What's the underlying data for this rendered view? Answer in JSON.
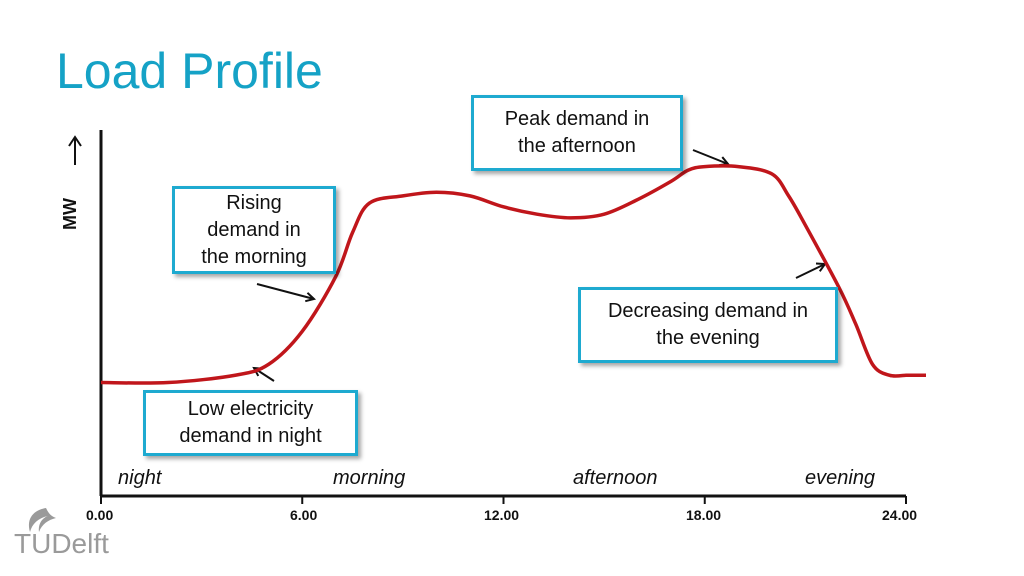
{
  "title": "Load Profile",
  "y_axis_label": "MW",
  "x_ticks": [
    "0.00",
    "6.00",
    "12.00",
    "18.00",
    "24.00"
  ],
  "periods": [
    "night",
    "morning",
    "afternoon",
    "evening"
  ],
  "callouts": {
    "night": "Low electricity\ndemand in night",
    "morning": "Rising\ndemand in\nthe morning",
    "afternoon": "Peak demand in\nthe afternoon",
    "evening": "Decreasing demand in\nthe evening"
  },
  "logo": {
    "text": "TUDelft"
  },
  "colors": {
    "title": "#15a2c6",
    "curve": "#c0161b",
    "callout_border": "#1eaad0",
    "axis": "#111111",
    "logo": "#9a9a9a"
  },
  "chart_data": {
    "type": "line",
    "title": "",
    "xlabel": "",
    "ylabel": "MW",
    "xlim": [
      0,
      24
    ],
    "ylim": [
      0,
      1
    ],
    "x_tick_values": [
      0,
      6,
      12,
      18,
      24
    ],
    "series": [
      {
        "x": [
          0,
          2,
          4,
          5,
          6,
          7,
          7.5,
          8,
          9,
          10,
          11,
          12,
          13,
          14,
          15,
          16,
          17,
          17.5,
          18,
          19,
          20,
          20.5,
          21,
          22,
          22.5,
          23,
          23.5,
          24
        ],
        "values": [
          0.31,
          0.31,
          0.33,
          0.36,
          0.45,
          0.6,
          0.72,
          0.8,
          0.82,
          0.83,
          0.82,
          0.79,
          0.77,
          0.76,
          0.77,
          0.81,
          0.86,
          0.89,
          0.9,
          0.9,
          0.88,
          0.82,
          0.74,
          0.57,
          0.47,
          0.36,
          0.33,
          0.33
        ]
      }
    ]
  }
}
